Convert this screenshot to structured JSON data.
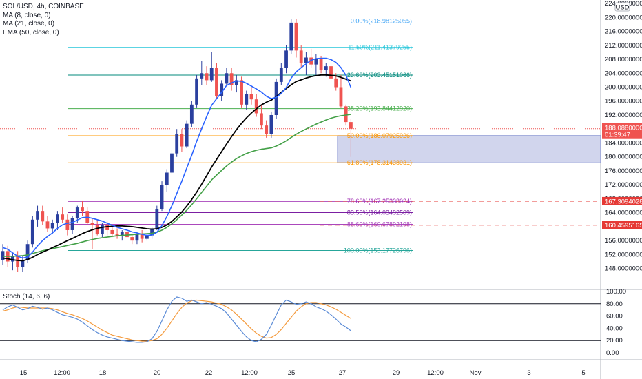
{
  "header": {
    "symbol_line": "SOL/USD, 4h, COINBASE",
    "indicators": [
      "MA (8, close, 0)",
      "MA (21, close, 0)",
      "EMA (50, close, 0)"
    ]
  },
  "currency_badge": "USD",
  "current_price": {
    "value": "188.08800000",
    "countdown": "01:39:47"
  },
  "alert_prices": [
    "167.30940284",
    "160.45951653"
  ],
  "stoch": {
    "label": "Stoch (14, 6, 6)",
    "ticks": [
      "100.00",
      "80.00",
      "60.00",
      "40.00",
      "20.00",
      "0.00"
    ]
  },
  "colors": {
    "up": "#2a3f9e",
    "down": "#ef5350",
    "ma8": "#2962ff",
    "ma21": "#000000",
    "ema50": "#43a047",
    "stoch_k": "#5b8bd6",
    "stoch_d": "#f49a3c",
    "alert": "#e53935",
    "zone": "#c5cae9"
  },
  "chart_data": {
    "type": "candlestick",
    "symbol": "SOL/USD",
    "timeframe": "4h",
    "y_range": [
      142,
      225
    ],
    "y_ticks": [
      "224.00000000",
      "220.00000000",
      "216.00000000",
      "212.00000000",
      "208.00000000",
      "204.00000000",
      "200.00000000",
      "196.00000000",
      "192.00000000",
      "188.00000000",
      "184.00000000",
      "180.00000000",
      "176.00000000",
      "172.00000000",
      "168.00000000",
      "164.00000000",
      "160.00000000",
      "156.00000000",
      "152.00000000",
      "148.00000000"
    ],
    "x_ticks": [
      "15",
      "12:00",
      "18",
      "20",
      "22",
      "12:00",
      "25",
      "27",
      "29",
      "12:00",
      "Nov",
      "3",
      "5"
    ],
    "fib_levels": [
      {
        "label": "0.00%(218.98125055)",
        "value": 218.98125055,
        "color": "#42a5f5"
      },
      {
        "label": "11.50%(211.41379255)",
        "value": 211.41379255,
        "color": "#26c6da"
      },
      {
        "label": "23.60%(203.45151066)",
        "value": 203.45151066,
        "color": "#00897b"
      },
      {
        "label": "38.20%(193.84412920)",
        "value": 193.8441292,
        "color": "#4caf50"
      },
      {
        "label": "50.00%(186.07925926)",
        "value": 186.07925926,
        "color": "#ff9800"
      },
      {
        "label": "61.80%(178.31438931)",
        "value": 178.31438931,
        "color": "#ff9800"
      },
      {
        "label": "78.60%(167.25338024)",
        "value": 167.25338024,
        "color": "#9c27b0"
      },
      {
        "label": "83.50%(164.03492509)",
        "value": 164.03492509,
        "color": "#7b1fa2"
      },
      {
        "label": "88.60%(160.67892198)",
        "value": 160.67892198,
        "color": "#ab47bc"
      },
      {
        "label": "100.00%(153.17726796)",
        "value": 153.17726796,
        "color": "#26a69a"
      }
    ],
    "zone": {
      "from": 178.3,
      "to": 186.1
    },
    "candles": [
      {
        "o": 150.5,
        "h": 155.0,
        "l": 149.0,
        "c": 153.0
      },
      {
        "o": 153.0,
        "h": 154.5,
        "l": 148.5,
        "c": 150.0
      },
      {
        "o": 150.0,
        "h": 152.5,
        "l": 147.5,
        "c": 151.5
      },
      {
        "o": 151.5,
        "h": 153.0,
        "l": 147.0,
        "c": 148.5
      },
      {
        "o": 148.5,
        "h": 151.5,
        "l": 147.0,
        "c": 150.5
      },
      {
        "o": 150.5,
        "h": 156.0,
        "l": 149.5,
        "c": 155.0
      },
      {
        "o": 155.0,
        "h": 163.0,
        "l": 154.0,
        "c": 162.0
      },
      {
        "o": 162.0,
        "h": 166.0,
        "l": 160.0,
        "c": 164.5
      },
      {
        "o": 164.5,
        "h": 166.0,
        "l": 160.5,
        "c": 161.5
      },
      {
        "o": 161.5,
        "h": 163.0,
        "l": 158.5,
        "c": 159.5
      },
      {
        "o": 159.5,
        "h": 162.0,
        "l": 158.0,
        "c": 161.0
      },
      {
        "o": 161.0,
        "h": 164.5,
        "l": 159.0,
        "c": 163.5
      },
      {
        "o": 163.5,
        "h": 165.5,
        "l": 161.0,
        "c": 162.0
      },
      {
        "o": 162.0,
        "h": 163.5,
        "l": 157.5,
        "c": 159.0
      },
      {
        "o": 159.0,
        "h": 163.0,
        "l": 158.0,
        "c": 162.5
      },
      {
        "o": 162.5,
        "h": 166.0,
        "l": 161.0,
        "c": 165.5
      },
      {
        "o": 165.5,
        "h": 167.5,
        "l": 163.0,
        "c": 164.5
      },
      {
        "o": 164.5,
        "h": 165.5,
        "l": 160.5,
        "c": 161.0
      },
      {
        "o": 161.0,
        "h": 162.5,
        "l": 153.5,
        "c": 160.5
      },
      {
        "o": 160.5,
        "h": 162.0,
        "l": 157.5,
        "c": 158.0
      },
      {
        "o": 158.0,
        "h": 161.0,
        "l": 157.0,
        "c": 160.5
      },
      {
        "o": 160.5,
        "h": 161.5,
        "l": 157.5,
        "c": 159.0
      },
      {
        "o": 159.0,
        "h": 160.5,
        "l": 157.0,
        "c": 158.0
      },
      {
        "o": 158.0,
        "h": 159.5,
        "l": 156.5,
        "c": 157.5
      },
      {
        "o": 157.5,
        "h": 159.0,
        "l": 156.0,
        "c": 158.5
      },
      {
        "o": 158.5,
        "h": 160.0,
        "l": 156.5,
        "c": 157.0
      },
      {
        "o": 157.0,
        "h": 158.0,
        "l": 155.0,
        "c": 156.0
      },
      {
        "o": 156.0,
        "h": 158.5,
        "l": 155.0,
        "c": 158.0
      },
      {
        "o": 158.0,
        "h": 159.0,
        "l": 155.5,
        "c": 156.5
      },
      {
        "o": 156.5,
        "h": 158.0,
        "l": 156.0,
        "c": 157.5
      },
      {
        "o": 157.5,
        "h": 160.0,
        "l": 156.5,
        "c": 159.5
      },
      {
        "o": 159.5,
        "h": 166.0,
        "l": 159.0,
        "c": 165.0
      },
      {
        "o": 165.0,
        "h": 173.0,
        "l": 164.5,
        "c": 172.0
      },
      {
        "o": 172.0,
        "h": 176.5,
        "l": 170.0,
        "c": 175.5
      },
      {
        "o": 175.5,
        "h": 182.0,
        "l": 175.0,
        "c": 181.0
      },
      {
        "o": 181.0,
        "h": 188.0,
        "l": 180.0,
        "c": 186.5
      },
      {
        "o": 186.5,
        "h": 188.0,
        "l": 181.5,
        "c": 183.0
      },
      {
        "o": 183.0,
        "h": 190.5,
        "l": 182.5,
        "c": 189.5
      },
      {
        "o": 189.5,
        "h": 196.0,
        "l": 188.5,
        "c": 195.0
      },
      {
        "o": 195.0,
        "h": 203.5,
        "l": 194.0,
        "c": 202.5
      },
      {
        "o": 202.5,
        "h": 207.5,
        "l": 200.5,
        "c": 204.0
      },
      {
        "o": 204.0,
        "h": 206.0,
        "l": 200.5,
        "c": 202.0
      },
      {
        "o": 202.0,
        "h": 210.0,
        "l": 201.5,
        "c": 205.5
      },
      {
        "o": 205.5,
        "h": 207.0,
        "l": 196.5,
        "c": 197.5
      },
      {
        "o": 197.5,
        "h": 202.0,
        "l": 196.0,
        "c": 201.0
      },
      {
        "o": 201.0,
        "h": 205.5,
        "l": 200.5,
        "c": 204.0
      },
      {
        "o": 204.0,
        "h": 205.5,
        "l": 199.0,
        "c": 200.5
      },
      {
        "o": 200.5,
        "h": 203.5,
        "l": 198.5,
        "c": 202.0
      },
      {
        "o": 202.0,
        "h": 203.0,
        "l": 194.0,
        "c": 195.0
      },
      {
        "o": 195.0,
        "h": 199.0,
        "l": 193.5,
        "c": 198.0
      },
      {
        "o": 198.0,
        "h": 200.0,
        "l": 195.0,
        "c": 196.5
      },
      {
        "o": 196.5,
        "h": 198.0,
        "l": 191.5,
        "c": 192.5
      },
      {
        "o": 192.5,
        "h": 195.0,
        "l": 188.0,
        "c": 189.0
      },
      {
        "o": 189.0,
        "h": 190.5,
        "l": 185.5,
        "c": 186.5
      },
      {
        "o": 186.5,
        "h": 193.0,
        "l": 185.5,
        "c": 192.0
      },
      {
        "o": 192.0,
        "h": 202.5,
        "l": 191.0,
        "c": 201.5
      },
      {
        "o": 201.5,
        "h": 207.0,
        "l": 200.5,
        "c": 205.5
      },
      {
        "o": 205.5,
        "h": 212.0,
        "l": 204.0,
        "c": 210.5
      },
      {
        "o": 210.5,
        "h": 219.5,
        "l": 209.5,
        "c": 218.5
      },
      {
        "o": 218.5,
        "h": 219.5,
        "l": 208.5,
        "c": 210.5
      },
      {
        "o": 210.5,
        "h": 212.0,
        "l": 205.5,
        "c": 207.0
      },
      {
        "o": 207.0,
        "h": 210.0,
        "l": 203.5,
        "c": 208.5
      },
      {
        "o": 208.5,
        "h": 211.0,
        "l": 205.5,
        "c": 206.5
      },
      {
        "o": 206.5,
        "h": 209.5,
        "l": 203.5,
        "c": 208.0
      },
      {
        "o": 208.0,
        "h": 209.0,
        "l": 204.0,
        "c": 205.0
      },
      {
        "o": 205.0,
        "h": 207.0,
        "l": 203.0,
        "c": 206.0
      },
      {
        "o": 206.0,
        "h": 207.0,
        "l": 201.5,
        "c": 202.5
      },
      {
        "o": 202.5,
        "h": 204.0,
        "l": 199.0,
        "c": 200.0
      },
      {
        "o": 200.0,
        "h": 203.5,
        "l": 194.0,
        "c": 194.5
      },
      {
        "o": 194.5,
        "h": 195.0,
        "l": 189.0,
        "c": 190.0
      },
      {
        "o": 190.0,
        "h": 191.0,
        "l": 180.0,
        "c": 188.1
      }
    ],
    "ma8": [
      154,
      153.5,
      152.5,
      151.5,
      151,
      151.3,
      152.7,
      154.5,
      156,
      157.2,
      158.2,
      159.5,
      160.5,
      161,
      161.2,
      161.9,
      162.6,
      162.7,
      162.4,
      162,
      161.6,
      161,
      160.4,
      159.8,
      159.4,
      159,
      158.5,
      158.2,
      157.8,
      157.5,
      157.6,
      158.4,
      160.3,
      162.9,
      166,
      169.5,
      173,
      176.8,
      180.5,
      184.5,
      188.1,
      191.6,
      194.8,
      196.7,
      198.5,
      200.5,
      201.2,
      201.8,
      201.7,
      201.1,
      200.3,
      199.5,
      198.6,
      197.4,
      196.7,
      197.1,
      198.2,
      199.9,
      202.6,
      204.4,
      205.6,
      206.7,
      207.7,
      208.2,
      208.3,
      208.3,
      207.9,
      207.1,
      205.6,
      203.4,
      199.9
    ],
    "ma21": [
      151,
      150.8,
      150.5,
      150.3,
      150.2,
      150.6,
      151.2,
      152,
      152.7,
      153.3,
      154,
      154.6,
      155.3,
      156,
      156.6,
      157.3,
      158,
      158.6,
      159.1,
      159.5,
      159.8,
      160,
      160.1,
      160.2,
      160.2,
      160.1,
      160,
      159.8,
      159.6,
      159.4,
      159.3,
      159.4,
      159.8,
      160.5,
      161.5,
      162.8,
      164.2,
      165.9,
      167.8,
      169.9,
      172.2,
      174.6,
      177.1,
      179.3,
      181.5,
      183.7,
      185.8,
      187.8,
      189.6,
      191.2,
      192.6,
      193.8,
      194.9,
      195.7,
      196.3,
      197.3,
      198.5,
      199.6,
      200.7,
      201.6,
      202.1,
      202.6,
      203,
      203.3,
      203.5,
      203.5,
      203.4,
      203.2,
      202.8,
      202.3,
      201.8
    ],
    "ema50": [
      151.5,
      151.5,
      151.5,
      151.6,
      151.7,
      151.9,
      152.3,
      152.7,
      153.1,
      153.4,
      153.7,
      154,
      154.3,
      154.6,
      154.9,
      155.2,
      155.6,
      156,
      156.3,
      156.6,
      156.8,
      157,
      157.2,
      157.4,
      157.5,
      157.6,
      157.7,
      157.8,
      157.9,
      158,
      158.1,
      158.4,
      159,
      159.8,
      160.8,
      162,
      163.3,
      164.7,
      166.3,
      168,
      169.8,
      171.6,
      173.4,
      174.8,
      176.1,
      177.4,
      178.5,
      179.5,
      180.3,
      181,
      181.5,
      181.9,
      182.2,
      182.4,
      182.6,
      183.1,
      183.8,
      184.6,
      185.6,
      186.5,
      187.3,
      188,
      188.7,
      189.4,
      190,
      190.6,
      191.1,
      191.5,
      191.8,
      192,
      192.2
    ],
    "stoch_k": [
      70,
      75,
      78,
      74,
      70,
      72,
      76,
      74,
      71,
      73,
      70,
      66,
      62,
      60,
      58,
      55,
      50,
      44,
      38,
      33,
      29,
      26,
      24,
      22,
      20,
      19,
      18,
      17,
      17,
      18,
      23,
      35,
      52,
      70,
      84,
      91,
      89,
      84,
      86,
      83,
      80,
      82,
      79,
      76,
      72,
      65,
      55,
      45,
      35,
      26,
      20,
      18,
      22,
      30,
      45,
      62,
      78,
      86,
      83,
      79,
      80,
      83,
      80,
      75,
      72,
      68,
      62,
      55,
      47,
      42,
      36
    ],
    "stoch_d": [
      68,
      70,
      73,
      75,
      74,
      73,
      73,
      73,
      73,
      73,
      72,
      70,
      67,
      64,
      62,
      59,
      56,
      52,
      47,
      42,
      37,
      33,
      29,
      27,
      25,
      23,
      21,
      20,
      19,
      19,
      20,
      23,
      30,
      40,
      52,
      64,
      74,
      81,
      85,
      86,
      85,
      84,
      83,
      81,
      79,
      75,
      70,
      63,
      55,
      47,
      39,
      32,
      27,
      24,
      25,
      30,
      38,
      48,
      58,
      68,
      75,
      80,
      82,
      82,
      80,
      78,
      75,
      71,
      66,
      61,
      56
    ],
    "stoch_levels": [
      80,
      20
    ],
    "stoch_range": [
      0,
      100
    ]
  }
}
